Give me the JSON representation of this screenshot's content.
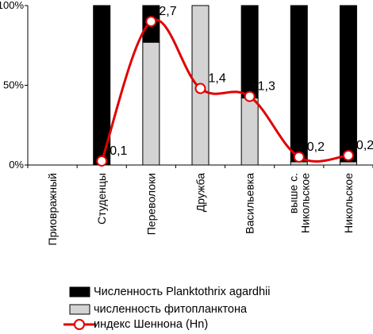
{
  "chart_data": {
    "type": "bar",
    "stacked_percent": true,
    "categories": [
      [
        "Приовражный"
      ],
      [
        "Студенцы"
      ],
      [
        "Переволоки"
      ],
      [
        "Дружба"
      ],
      [
        "Васильевка"
      ],
      [
        "выше с.",
        "Никольское"
      ],
      [
        "Никольское"
      ]
    ],
    "series": [
      {
        "name": "Численность Planktothrix agardhii",
        "color": "#000000",
        "values": [
          0,
          100,
          23,
          0,
          58,
          98,
          98
        ]
      },
      {
        "name": "численность фитопланктона",
        "color": "#d3d3d3",
        "values": [
          0,
          0,
          77,
          100,
          42,
          2,
          2
        ]
      }
    ],
    "line_series": {
      "name": "индекс Шеннона (Hn)",
      "color": "#e00000",
      "plot_percent": [
        null,
        2.5,
        90,
        48,
        43,
        5,
        6
      ],
      "data_labels": [
        "",
        "0,1",
        "2,7",
        "1,4",
        "1,3",
        "0,2",
        "0,2"
      ]
    },
    "y_ticks": [
      "0%",
      "50%",
      "100%"
    ],
    "ylim": [
      0,
      100
    ],
    "grid": false,
    "legend_position": "bottom"
  }
}
